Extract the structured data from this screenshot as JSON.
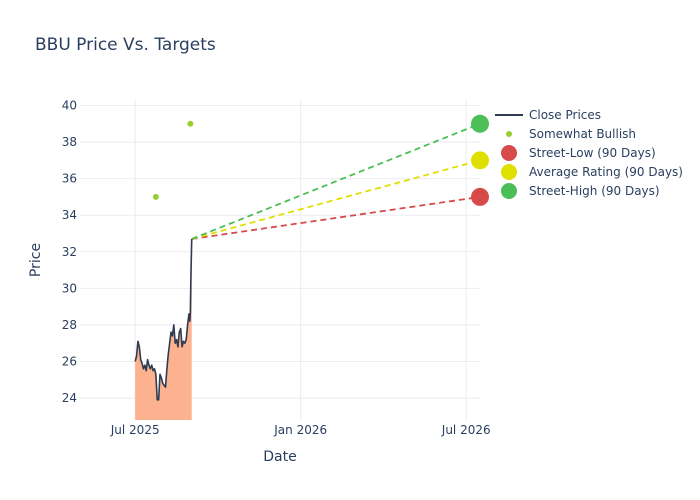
{
  "chart_data": {
    "type": "line",
    "title": "BBU Price Vs. Targets",
    "xlabel": "Date",
    "ylabel": "Price",
    "ylim": [
      22.8,
      40.3
    ],
    "xlim_months": [
      4.0,
      18.5
    ],
    "y_ticks": [
      24,
      26,
      28,
      30,
      32,
      34,
      36,
      38,
      40
    ],
    "x_ticks": [
      {
        "label": "Jul 2025",
        "month": 6.0
      },
      {
        "label": "Jan 2026",
        "month": 12.0
      },
      {
        "label": "Jul 2026",
        "month": 18.0
      }
    ],
    "grid": true,
    "legend_position": "top-right",
    "colors": {
      "close": "#2f3b52",
      "fill": "#fdb28f",
      "bullish": "#9acd32",
      "low": "#d84a4a",
      "average": "#e0e000",
      "high": "#4cbe58"
    },
    "legend": [
      {
        "label": "Close Prices",
        "key": "close",
        "symbol": "line"
      },
      {
        "label": "Somewhat Bullish",
        "key": "bullish",
        "symbol": "small-dot"
      },
      {
        "label": "Street-Low (90 Days)",
        "key": "low",
        "symbol": "big-dot"
      },
      {
        "label": "Average Rating (90 Days)",
        "key": "average",
        "symbol": "big-dot"
      },
      {
        "label": "Street-High (90 Days)",
        "key": "high",
        "symbol": "big-dot"
      }
    ],
    "close_prices": [
      {
        "m": 6.0,
        "y": 26.0
      },
      {
        "m": 6.05,
        "y": 26.3
      },
      {
        "m": 6.1,
        "y": 27.1
      },
      {
        "m": 6.15,
        "y": 26.8
      },
      {
        "m": 6.2,
        "y": 26.1
      },
      {
        "m": 6.25,
        "y": 25.9
      },
      {
        "m": 6.3,
        "y": 25.6
      },
      {
        "m": 6.35,
        "y": 25.8
      },
      {
        "m": 6.4,
        "y": 25.5
      },
      {
        "m": 6.45,
        "y": 26.1
      },
      {
        "m": 6.5,
        "y": 25.8
      },
      {
        "m": 6.55,
        "y": 25.6
      },
      {
        "m": 6.6,
        "y": 25.8
      },
      {
        "m": 6.65,
        "y": 25.5
      },
      {
        "m": 6.7,
        "y": 25.6
      },
      {
        "m": 6.75,
        "y": 25.3
      },
      {
        "m": 6.8,
        "y": 23.9
      },
      {
        "m": 6.85,
        "y": 23.9
      },
      {
        "m": 6.9,
        "y": 25.3
      },
      {
        "m": 6.95,
        "y": 25.1
      },
      {
        "m": 7.0,
        "y": 24.8
      },
      {
        "m": 7.05,
        "y": 24.7
      },
      {
        "m": 7.1,
        "y": 24.6
      },
      {
        "m": 7.15,
        "y": 25.6
      },
      {
        "m": 7.2,
        "y": 26.4
      },
      {
        "m": 7.25,
        "y": 27.0
      },
      {
        "m": 7.3,
        "y": 27.6
      },
      {
        "m": 7.35,
        "y": 27.4
      },
      {
        "m": 7.4,
        "y": 28.0
      },
      {
        "m": 7.45,
        "y": 27.0
      },
      {
        "m": 7.5,
        "y": 27.2
      },
      {
        "m": 7.55,
        "y": 26.8
      },
      {
        "m": 7.6,
        "y": 27.6
      },
      {
        "m": 7.65,
        "y": 27.8
      },
      {
        "m": 7.7,
        "y": 26.8
      },
      {
        "m": 7.75,
        "y": 27.1
      },
      {
        "m": 7.8,
        "y": 27.0
      },
      {
        "m": 7.85,
        "y": 27.2
      },
      {
        "m": 7.9,
        "y": 28.0
      },
      {
        "m": 7.95,
        "y": 28.6
      },
      {
        "m": 7.98,
        "y": 28.2
      },
      {
        "m": 8.0,
        "y": 28.7
      },
      {
        "m": 8.02,
        "y": 30.6
      },
      {
        "m": 8.05,
        "y": 32.7
      }
    ],
    "somewhat_bullish": [
      {
        "m": 6.75,
        "y": 35.0
      },
      {
        "m": 8.0,
        "y": 39.0
      }
    ],
    "targets": {
      "start": {
        "m": 8.05,
        "y": 32.7
      },
      "end_month": 18.5,
      "low": 35.0,
      "average": 37.0,
      "high": 39.0
    }
  }
}
